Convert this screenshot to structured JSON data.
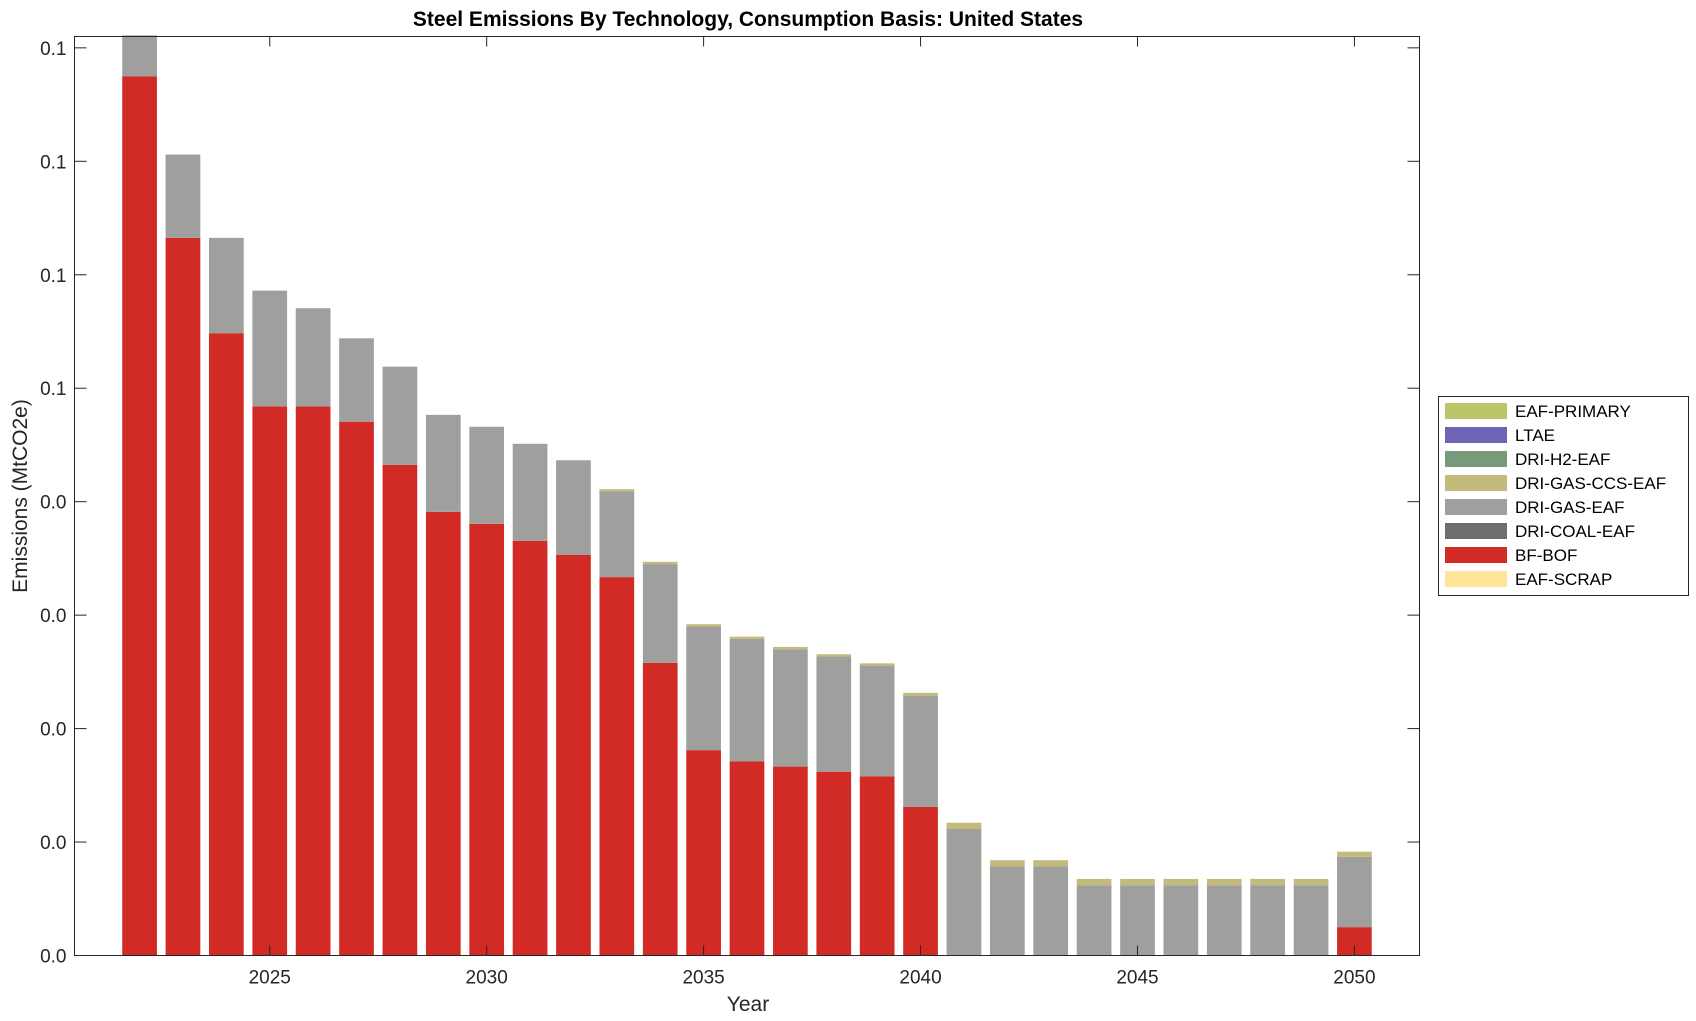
{
  "chart_data": {
    "type": "bar",
    "stacked": true,
    "title": "Steel Emissions By Technology, Consumption Basis: United States",
    "xlabel": "Year",
    "ylabel": "Emissions (MtCO2e)",
    "x": [
      2022,
      2023,
      2024,
      2025,
      2026,
      2027,
      2028,
      2029,
      2030,
      2031,
      2032,
      2033,
      2034,
      2035,
      2036,
      2037,
      2038,
      2039,
      2040,
      2041,
      2042,
      2043,
      2044,
      2045,
      2046,
      2047,
      2048,
      2049,
      2050
    ],
    "x_ticks": [
      2025,
      2030,
      2035,
      2040,
      2045,
      2050
    ],
    "xlim": [
      2020.5,
      2051.5
    ],
    "ylim": [
      0,
      0.162
    ],
    "y_ticks": [
      0,
      0.02,
      0.04,
      0.06,
      0.08,
      0.1,
      0.12,
      0.14,
      0.16
    ],
    "y_tick_labels": [
      "0.0",
      "0.0",
      "0.0",
      "0.0",
      "0.0",
      "0.1",
      "0.1",
      "0.1",
      "0.1"
    ],
    "grid": false,
    "legend_position": "right",
    "series": [
      {
        "name": "EAF-SCRAP",
        "color": "#FDE699",
        "values": [
          0,
          0,
          0,
          0,
          0,
          0,
          0,
          0,
          0,
          0,
          0,
          0,
          0,
          0,
          0,
          0,
          0,
          0,
          0,
          0,
          0,
          0,
          0,
          0,
          0,
          0,
          0,
          0,
          0
        ]
      },
      {
        "name": "BF-BOF",
        "color": "#D22B26",
        "values": [
          0.155,
          0.1265,
          0.1097,
          0.0968,
          0.0968,
          0.0941,
          0.0865,
          0.0782,
          0.0761,
          0.0731,
          0.0706,
          0.0667,
          0.0516,
          0.0362,
          0.0342,
          0.0333,
          0.0324,
          0.0316,
          0.0262,
          0,
          0,
          0,
          0,
          0,
          0,
          0,
          0,
          0,
          0.005
        ]
      },
      {
        "name": "DRI-COAL-EAF",
        "color": "#6E6E6E",
        "values": [
          0,
          0,
          0,
          0,
          0,
          0,
          0,
          0,
          0,
          0,
          0,
          0,
          0,
          0,
          0,
          0,
          0,
          0,
          0,
          0,
          0,
          0,
          0,
          0,
          0,
          0,
          0,
          0,
          0
        ]
      },
      {
        "name": "DRI-GAS-EAF",
        "color": "#9F9F9E",
        "values": [
          0.0072,
          0.0147,
          0.0168,
          0.0204,
          0.0173,
          0.0147,
          0.0173,
          0.0171,
          0.0171,
          0.0171,
          0.0167,
          0.0151,
          0.0174,
          0.0218,
          0.0216,
          0.0207,
          0.0203,
          0.0195,
          0.0196,
          0.0223,
          0.0157,
          0.0157,
          0.0124,
          0.0124,
          0.0124,
          0.0124,
          0.0124,
          0.0124,
          0.0124
        ]
      },
      {
        "name": "DRI-GAS-CCS-EAF",
        "color": "#C2BB7C",
        "values": [
          0,
          0,
          0,
          0,
          0,
          0,
          0,
          0,
          0,
          0,
          0,
          0.0004,
          0.0004,
          0.0004,
          0.0004,
          0.0004,
          0.0004,
          0.0004,
          0.0005,
          0.0011,
          0.0011,
          0.0011,
          0.0011,
          0.0011,
          0.0011,
          0.0011,
          0.0011,
          0.0011,
          0.0009
        ]
      },
      {
        "name": "DRI-H2-EAF",
        "color": "#769A7A",
        "values": [
          0,
          0,
          0,
          0,
          0,
          0,
          0,
          0,
          0,
          0,
          0,
          0,
          0,
          0,
          0,
          0,
          0,
          0,
          0,
          0,
          0,
          0,
          0,
          0,
          0,
          0,
          0,
          0,
          0
        ]
      },
      {
        "name": "LTAE",
        "color": "#6E66B5",
        "values": [
          0,
          0,
          0,
          0,
          0,
          0,
          0,
          0,
          0,
          0,
          0,
          0,
          0,
          0,
          0,
          0,
          0,
          0,
          0,
          0,
          0,
          0,
          0,
          0,
          0,
          0,
          0,
          0,
          0
        ]
      },
      {
        "name": "EAF-PRIMARY",
        "color": "#BDC56A",
        "values": [
          0,
          0,
          0,
          0,
          0,
          0,
          0,
          0,
          0,
          0,
          0,
          0,
          0,
          0,
          0,
          0,
          0,
          0,
          0,
          0,
          0,
          0,
          0,
          0,
          0,
          0,
          0,
          0,
          0
        ]
      }
    ],
    "legend_order": [
      "EAF-PRIMARY",
      "LTAE",
      "DRI-H2-EAF",
      "DRI-GAS-CCS-EAF",
      "DRI-GAS-EAF",
      "DRI-COAL-EAF",
      "BF-BOF",
      "EAF-SCRAP"
    ]
  }
}
